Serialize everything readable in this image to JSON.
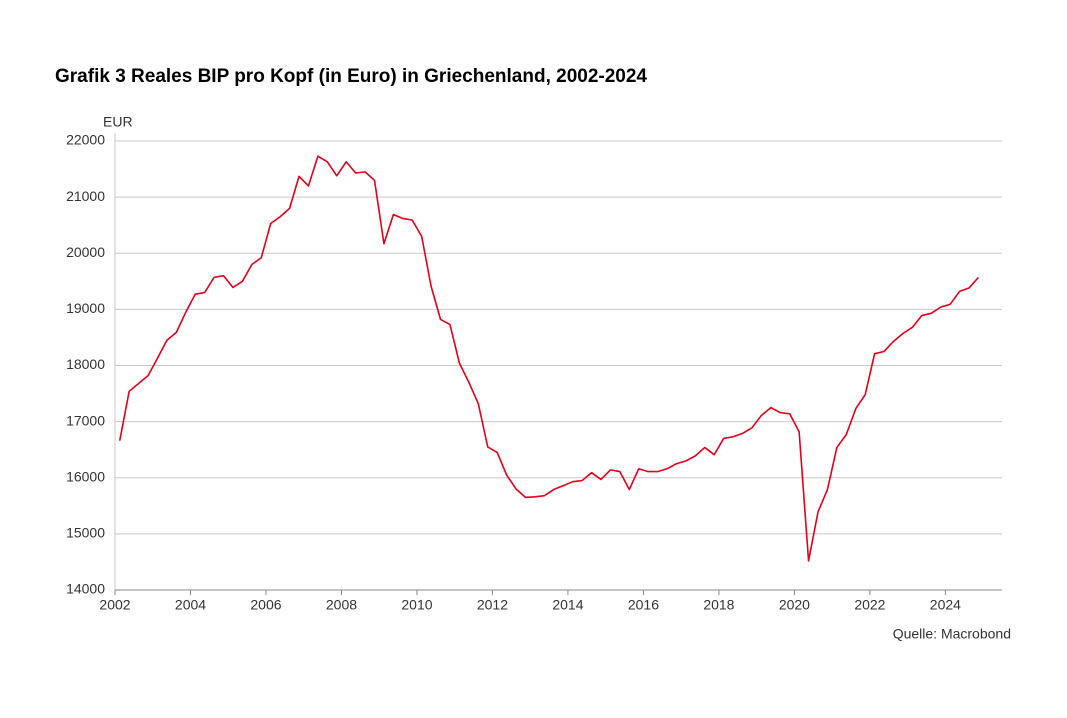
{
  "chart_data": {
    "type": "line",
    "title": "Grafik 3 Reales BIP pro Kopf (in Euro) in Griechenland, 2002-2024",
    "y_label": "EUR",
    "source": "Quelle: Macrobond",
    "color": "#e2001a",
    "x": [
      2002.125,
      2002.375,
      2002.625,
      2002.875,
      2003.125,
      2003.375,
      2003.625,
      2003.875,
      2004.125,
      2004.375,
      2004.625,
      2004.875,
      2005.125,
      2005.375,
      2005.625,
      2005.875,
      2006.125,
      2006.375,
      2006.625,
      2006.875,
      2007.125,
      2007.375,
      2007.625,
      2007.875,
      2008.125,
      2008.375,
      2008.625,
      2008.875,
      2009.125,
      2009.375,
      2009.625,
      2009.875,
      2010.125,
      2010.375,
      2010.625,
      2010.875,
      2011.125,
      2011.375,
      2011.625,
      2011.875,
      2012.125,
      2012.375,
      2012.625,
      2012.875,
      2013.125,
      2013.375,
      2013.625,
      2013.875,
      2014.125,
      2014.375,
      2014.625,
      2014.875,
      2015.125,
      2015.375,
      2015.625,
      2015.875,
      2016.125,
      2016.375,
      2016.625,
      2016.875,
      2017.125,
      2017.375,
      2017.625,
      2017.875,
      2018.125,
      2018.375,
      2018.625,
      2018.875,
      2019.125,
      2019.375,
      2019.625,
      2019.875,
      2020.125,
      2020.375,
      2020.625,
      2020.875,
      2021.125,
      2021.375,
      2021.625,
      2021.875,
      2022.125,
      2022.375,
      2022.625,
      2022.875,
      2023.125,
      2023.375,
      2023.625,
      2023.875,
      2024.125,
      2024.375,
      2024.625,
      2024.875
    ],
    "values": [
      16660,
      17540,
      17680,
      17820,
      18130,
      18450,
      18590,
      18950,
      19270,
      19300,
      19570,
      19600,
      19390,
      19500,
      19800,
      19920,
      20530,
      20650,
      20800,
      21370,
      21200,
      21730,
      21630,
      21380,
      21630,
      21430,
      21450,
      21300,
      20170,
      20690,
      20620,
      20590,
      20300,
      19410,
      18820,
      18730,
      18040,
      17700,
      17320,
      16550,
      16450,
      16050,
      15800,
      15650,
      15660,
      15680,
      15790,
      15860,
      15930,
      15950,
      16090,
      15970,
      16140,
      16110,
      15790,
      16160,
      16110,
      16110,
      16160,
      16250,
      16300,
      16390,
      16540,
      16410,
      16700,
      16730,
      16790,
      16890,
      17110,
      17250,
      17160,
      17140,
      16820,
      14520,
      15390,
      15790,
      16540,
      16770,
      17230,
      17480,
      18210,
      18250,
      18430,
      18570,
      18680,
      18890,
      18930,
      19040,
      19090,
      19320,
      19380,
      19570
    ],
    "xlim": [
      2002,
      2025.5
    ],
    "xticks": [
      2002,
      2004,
      2006,
      2008,
      2010,
      2012,
      2014,
      2016,
      2018,
      2020,
      2022,
      2024
    ],
    "ylim": [
      14000,
      22000
    ],
    "yticks": [
      14000,
      15000,
      16000,
      17000,
      18000,
      19000,
      20000,
      21000,
      22000
    ],
    "grid": true
  }
}
